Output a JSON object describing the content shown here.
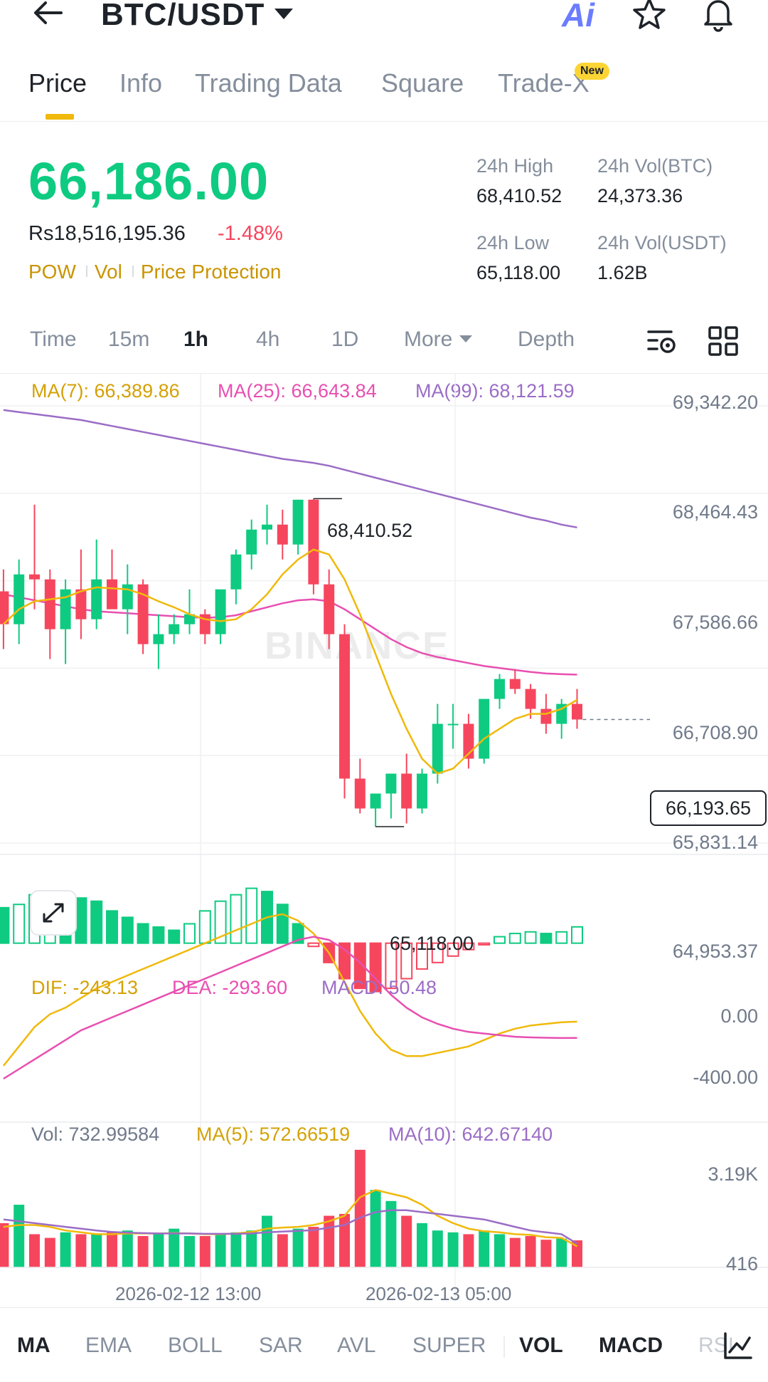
{
  "header": {
    "pair": "BTC/USDT",
    "ai_label": "Ai",
    "icons": [
      "back-arrow-icon",
      "chevron-down-icon",
      "ai-icon",
      "star-icon",
      "bell-icon"
    ]
  },
  "tabs": [
    {
      "label": "Price"
    },
    {
      "label": "Info"
    },
    {
      "label": "Trading Data"
    },
    {
      "label": "Square"
    },
    {
      "label": "Trade-X"
    }
  ],
  "tab_badge": "New",
  "price": {
    "last": "66,186.00",
    "local": "Rs18,516,195.36",
    "change": "-1.48%",
    "links": [
      "POW",
      "Vol",
      "Price Protection"
    ]
  },
  "stats": {
    "high_label": "24h High",
    "high": "68,410.52",
    "vol_btc_label": "24h Vol(BTC)",
    "vol_btc": "24,373.36",
    "low_label": "24h Low",
    "low": "65,118.00",
    "vol_usdt_label": "24h Vol(USDT)",
    "vol_usdt": "1.62B"
  },
  "intervals": [
    "Time",
    "15m",
    "1h",
    "4h",
    "1D",
    "More",
    "Depth"
  ],
  "active_interval": "1h",
  "ma_legend": {
    "ma7": "MA(7): 66,389.86",
    "ma25": "MA(25): 66,643.84",
    "ma99": "MA(99): 68,121.59"
  },
  "price_axis": [
    "69,342.20",
    "68,464.43",
    "67,586.66",
    "66,708.90",
    "65,831.14",
    "64,953.37"
  ],
  "current_price_tag": "66,193.65",
  "high_marker": "68,410.52",
  "low_marker": "65,118.00",
  "watermark": "BINANCE",
  "macd_legend": {
    "dif": "DIF: -243.13",
    "dea": "DEA: -293.60",
    "macd": "MACD: 50.48"
  },
  "macd_axis": [
    "0.00",
    "-400.00"
  ],
  "vol_legend": {
    "vol": "Vol: 732.99584",
    "ma5": "MA(5): 572.66519",
    "ma10": "MA(10): 642.67140"
  },
  "vol_axis": [
    "3.19K",
    "416"
  ],
  "time_axis": [
    "2026-02-12 13:00",
    "2026-02-13 05:00"
  ],
  "indicators": [
    "MA",
    "EMA",
    "BOLL",
    "SAR",
    "AVL",
    "SUPER",
    "VOL",
    "MACD",
    "RSI"
  ],
  "colors": {
    "up": "#0ecb81",
    "down": "#f6465d",
    "ma7": "#f0b90b",
    "ma25": "#e84fb1",
    "ma99": "#9b6dc6",
    "accent": "#f0b90b"
  },
  "chart_data": {
    "type": "candlestick",
    "interval": "1h",
    "candles_ohlc": [
      [
        67480,
        67700,
        66900,
        67150
      ],
      [
        67150,
        67800,
        66950,
        67650
      ],
      [
        67650,
        68350,
        67300,
        67600
      ],
      [
        67600,
        67700,
        66800,
        67100
      ],
      [
        67100,
        67600,
        66750,
        67500
      ],
      [
        67500,
        67900,
        67000,
        67200
      ],
      [
        67200,
        68000,
        67100,
        67600
      ],
      [
        67600,
        67900,
        67350,
        67300
      ],
      [
        67300,
        67750,
        67050,
        67550
      ],
      [
        67550,
        67600,
        66850,
        66950
      ],
      [
        66950,
        67250,
        66700,
        67050
      ],
      [
        67050,
        67250,
        66950,
        67150
      ],
      [
        67150,
        67500,
        67050,
        67250
      ],
      [
        67250,
        67300,
        66950,
        67050
      ],
      [
        67050,
        67400,
        66950,
        67500
      ],
      [
        67500,
        67900,
        67350,
        67850
      ],
      [
        67850,
        68200,
        67700,
        68100
      ],
      [
        68100,
        68350,
        67950,
        68150
      ],
      [
        68150,
        68300,
        67800,
        67950
      ],
      [
        67950,
        68400,
        67850,
        68400
      ],
      [
        68400,
        68410.52,
        67450,
        67550
      ],
      [
        67550,
        67700,
        66900,
        67050
      ],
      [
        67050,
        67150,
        65400,
        65600
      ],
      [
        65600,
        65800,
        65250,
        65300
      ],
      [
        65300,
        65450,
        65118,
        65450
      ],
      [
        65450,
        65600,
        65200,
        65650
      ],
      [
        65650,
        65850,
        65150,
        65300
      ],
      [
        65300,
        65700,
        65250,
        65650
      ],
      [
        65650,
        66350,
        65550,
        66150
      ],
      [
        66150,
        66350,
        65900,
        66150
      ],
      [
        66150,
        66250,
        65700,
        65800
      ],
      [
        65800,
        66300,
        65750,
        66400
      ],
      [
        66400,
        66650,
        66300,
        66600
      ],
      [
        66600,
        66700,
        66450,
        66500
      ],
      [
        66500,
        66550,
        66200,
        66300
      ],
      [
        66300,
        66450,
        66050,
        66150
      ],
      [
        66150,
        66400,
        66000,
        66350
      ],
      [
        66350,
        66500,
        66100,
        66193.65
      ]
    ],
    "ma7": [
      67150,
      67300,
      67380,
      67400,
      67420,
      67480,
      67520,
      67510,
      67500,
      67450,
      67380,
      67320,
      67250,
      67200,
      67180,
      67200,
      67300,
      67450,
      67650,
      67800,
      67900,
      67850,
      67600,
      67250,
      66850,
      66450,
      66100,
      65800,
      65650,
      65700,
      65850,
      66000,
      66100,
      66200,
      66250,
      66250,
      66300,
      66389.86
    ],
    "ma25": [
      67450,
      67420,
      67390,
      67360,
      67330,
      67300,
      67280,
      67270,
      67260,
      67250,
      67240,
      67230,
      67220,
      67215,
      67220,
      67240,
      67280,
      67320,
      67360,
      67390,
      67400,
      67380,
      67300,
      67200,
      67100,
      67000,
      66920,
      66860,
      66820,
      66790,
      66760,
      66730,
      66710,
      66690,
      66670,
      66655,
      66648,
      66643.84
    ],
    "ma99": [
      69300,
      69280,
      69260,
      69240,
      69220,
      69200,
      69170,
      69140,
      69110,
      69080,
      69050,
      69020,
      68990,
      68960,
      68930,
      68900,
      68870,
      68840,
      68810,
      68790,
      68770,
      68740,
      68700,
      68660,
      68620,
      68580,
      68540,
      68500,
      68460,
      68420,
      68380,
      68340,
      68300,
      68260,
      68220,
      68190,
      68150,
      68121.59
    ],
    "y_range": [
      64953.37,
      69342.2
    ],
    "macd": {
      "hist": [
        110,
        120,
        150,
        160,
        150,
        140,
        130,
        100,
        80,
        60,
        50,
        40,
        60,
        100,
        130,
        150,
        170,
        160,
        120,
        60,
        -10,
        -60,
        -110,
        -140,
        -150,
        -140,
        -110,
        -80,
        -60,
        -40,
        -20,
        -5,
        20,
        30,
        35,
        30,
        35,
        50.48
      ],
      "dif": [
        -380,
        -320,
        -260,
        -220,
        -200,
        -170,
        -140,
        -120,
        -100,
        -80,
        -60,
        -40,
        -20,
        0,
        20,
        40,
        60,
        80,
        90,
        70,
        30,
        -30,
        -120,
        -210,
        -280,
        -330,
        -350,
        -350,
        -340,
        -330,
        -320,
        -300,
        -280,
        -265,
        -255,
        -250,
        -245,
        -243.13
      ],
      "dea": [
        -420,
        -390,
        -360,
        -330,
        -300,
        -270,
        -250,
        -230,
        -210,
        -190,
        -170,
        -150,
        -130,
        -110,
        -90,
        -70,
        -50,
        -30,
        -10,
        10,
        20,
        10,
        -20,
        -60,
        -110,
        -160,
        -200,
        -230,
        -250,
        -265,
        -275,
        -280,
        -285,
        -290,
        -292,
        -293,
        -294,
        -293.6
      ],
      "y_range": [
        -550,
        200
      ]
    },
    "volume": {
      "values": [
        1200,
        1700,
        900,
        800,
        950,
        900,
        900,
        950,
        1000,
        850,
        900,
        1050,
        850,
        850,
        900,
        950,
        1000,
        1400,
        900,
        1050,
        1100,
        1400,
        1450,
        3190,
        2100,
        1800,
        1400,
        1200,
        1000,
        950,
        900,
        1000,
        900,
        800,
        850,
        750,
        780,
        732.99584
      ],
      "ma5": [
        1100,
        1150,
        1150,
        1100,
        1000,
        950,
        900,
        900,
        920,
        920,
        920,
        930,
        920,
        900,
        900,
        920,
        960,
        1050,
        1080,
        1100,
        1150,
        1250,
        1400,
        1900,
        2100,
        2000,
        1900,
        1700,
        1400,
        1200,
        1050,
        980,
        950,
        900,
        880,
        820,
        800,
        572.66519
      ],
      "ma10": [
        1300,
        1250,
        1200,
        1150,
        1100,
        1050,
        1000,
        960,
        940,
        930,
        920,
        920,
        920,
        910,
        910,
        910,
        920,
        950,
        970,
        990,
        1010,
        1080,
        1150,
        1350,
        1500,
        1550,
        1550,
        1500,
        1450,
        1400,
        1350,
        1300,
        1200,
        1100,
        1000,
        950,
        900,
        642.6714
      ],
      "y_max": 3400
    }
  }
}
